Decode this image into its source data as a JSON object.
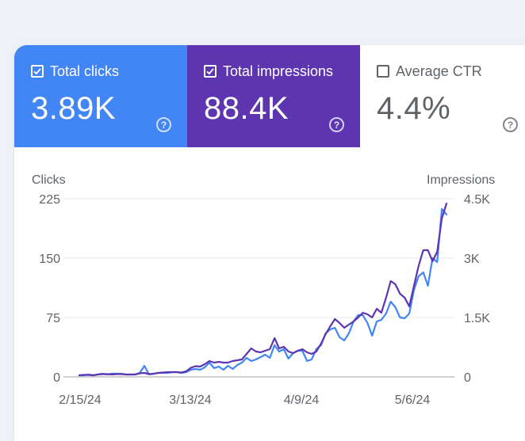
{
  "metrics": {
    "clicks": {
      "label": "Total clicks",
      "value": "3.89K",
      "checked": true,
      "color": "#4285f4"
    },
    "impressions": {
      "label": "Total impressions",
      "value": "88.4K",
      "checked": true,
      "color": "#5e35b1"
    },
    "ctr": {
      "label": "Average CTR",
      "value": "4.4%",
      "checked": false
    }
  },
  "chart_data": {
    "type": "line",
    "ylabel_left": "Clicks",
    "ylabel_right": "Impressions",
    "y_left_ticks": [
      "0",
      "75",
      "150",
      "225"
    ],
    "y_right_ticks": [
      "0",
      "1.5K",
      "3K",
      "4.5K"
    ],
    "ylim_left": [
      0,
      225
    ],
    "ylim_right": [
      0,
      4500
    ],
    "x_ticks": [
      "2/15/24",
      "3/13/24",
      "4/9/24",
      "5/6/24"
    ],
    "grid": true,
    "series": [
      {
        "name": "Clicks",
        "color": "#4285f4",
        "axis": "left",
        "values": [
          2,
          2,
          3,
          2,
          3,
          4,
          3,
          4,
          4,
          4,
          3,
          3,
          3,
          5,
          14,
          3,
          4,
          5,
          5,
          5,
          6,
          6,
          5,
          6,
          9,
          10,
          9,
          12,
          18,
          11,
          13,
          9,
          14,
          10,
          15,
          18,
          24,
          20,
          22,
          25,
          28,
          24,
          40,
          32,
          35,
          23,
          30,
          33,
          33,
          20,
          22,
          35,
          40,
          55,
          60,
          62,
          50,
          46,
          55,
          70,
          78,
          78,
          68,
          52,
          70,
          72,
          80,
          95,
          88,
          75,
          74,
          80,
          110,
          127,
          132,
          115,
          150,
          145,
          212,
          205
        ]
      },
      {
        "name": "Impressions",
        "color": "#5e35b1",
        "axis": "right",
        "values": [
          40,
          50,
          50,
          40,
          60,
          70,
          70,
          60,
          70,
          70,
          60,
          60,
          60,
          90,
          100,
          70,
          80,
          100,
          110,
          120,
          120,
          120,
          110,
          140,
          230,
          270,
          260,
          320,
          400,
          360,
          380,
          360,
          360,
          400,
          420,
          440,
          580,
          720,
          640,
          620,
          660,
          700,
          980,
          720,
          760,
          640,
          600,
          660,
          700,
          620,
          580,
          640,
          840,
          1080,
          1280,
          1460,
          1360,
          1240,
          1320,
          1400,
          1500,
          1620,
          1580,
          1500,
          1720,
          1620,
          2000,
          2420,
          2340,
          2100,
          2000,
          1780,
          2300,
          2800,
          3200,
          3200,
          2920,
          3160,
          4000,
          4380
        ]
      }
    ]
  }
}
